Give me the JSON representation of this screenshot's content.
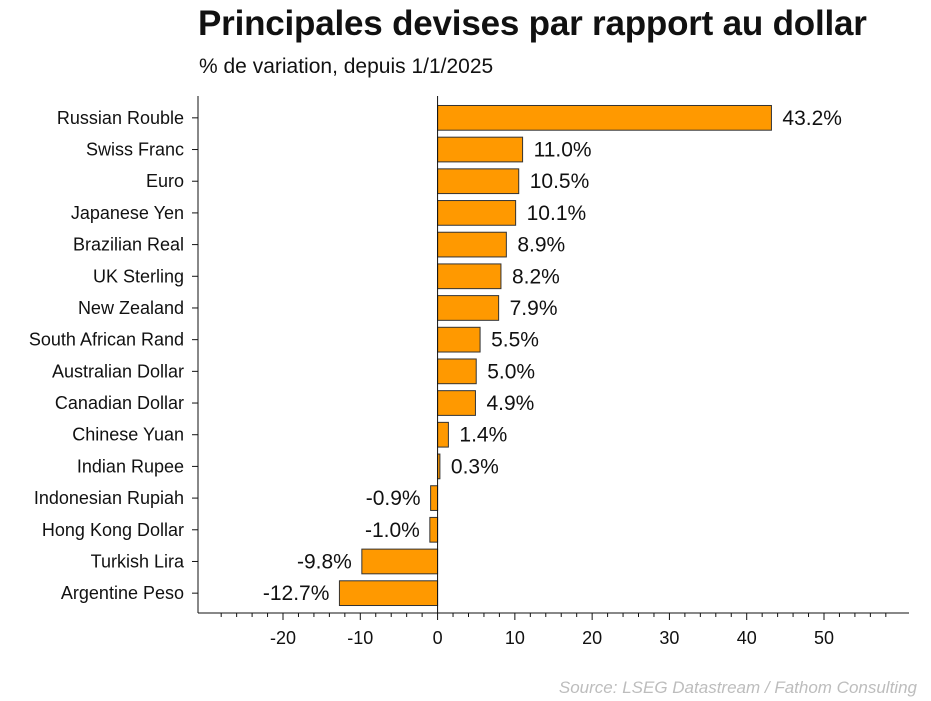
{
  "chart_data": {
    "type": "bar",
    "orientation": "horizontal",
    "title": "Principales devises par rapport au dollar",
    "subtitle": "% de variation, depuis 1/1/2025",
    "source": "Source: LSEG Datastream / Fathom Consulting",
    "categories": [
      "Russian Rouble",
      "Swiss Franc",
      "Euro",
      "Japanese Yen",
      "Brazilian Real",
      "UK Sterling",
      "New Zealand",
      "South African Rand",
      "Australian Dollar",
      "Canadian Dollar",
      "Chinese Yuan",
      "Indian Rupee",
      "Indonesian Rupiah",
      "Hong Kong Dollar",
      "Turkish Lira",
      "Argentine Peso"
    ],
    "values": [
      43.2,
      11.0,
      10.5,
      10.1,
      8.9,
      8.2,
      7.9,
      5.5,
      5.0,
      4.9,
      1.4,
      0.3,
      -0.9,
      -1.0,
      -9.8,
      -12.7
    ],
    "data_labels": [
      "43.2%",
      "11.0%",
      "10.5%",
      "10.1%",
      "8.9%",
      "8.2%",
      "7.9%",
      "5.5%",
      "5.0%",
      "4.9%",
      "1.4%",
      "0.3%",
      "-0.9%",
      "-1.0%",
      "-9.8%",
      "-12.7%"
    ],
    "x_ticks": [
      -20,
      -10,
      0,
      10,
      20,
      30,
      40,
      50
    ],
    "xlim": [
      -31,
      61
    ],
    "xlabel": "",
    "ylabel": "",
    "grid": false,
    "legend": "none",
    "bar_color": "#ff9900",
    "bar_edge_color": "#333333"
  }
}
